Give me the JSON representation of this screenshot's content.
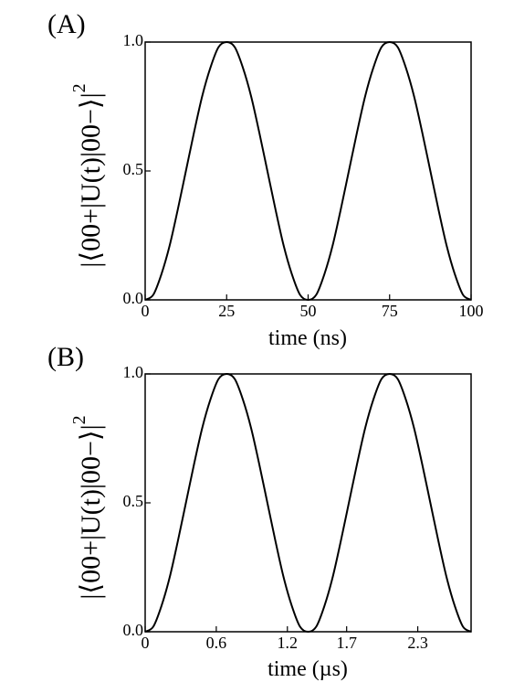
{
  "chart_data": [
    {
      "type": "line",
      "panel_label": "(A)",
      "title": "",
      "xlabel": "time (ns)",
      "ylabel": "|⟨00+|U(t)|00−⟩|",
      "ylabel_superscript": "2",
      "xlim": [
        0,
        100
      ],
      "ylim": [
        0,
        1
      ],
      "xticks": [
        0,
        25,
        50,
        75,
        100
      ],
      "xtick_labels": [
        "0",
        "25",
        "50",
        "75",
        "100"
      ],
      "yticks": [
        0,
        0.5,
        1
      ],
      "ytick_labels": [
        "0.0",
        "0.5",
        "1.0"
      ],
      "grid": false,
      "legend": "none",
      "line_color": "#000000",
      "series": [
        {
          "x": [
            0,
            2.5,
            5,
            7.5,
            10,
            12.5,
            15,
            17.5,
            20,
            22.5,
            25,
            27.5,
            30,
            32.5,
            35,
            37.5,
            40,
            42.5,
            45,
            47.5,
            50,
            52.5,
            55,
            57.5,
            60,
            62.5,
            65,
            67.5,
            70,
            72.5,
            75,
            77.5,
            80,
            82.5,
            85,
            87.5,
            90,
            92.5,
            95,
            97.5,
            100
          ],
          "values": [
            0,
            0.02,
            0.1,
            0.21,
            0.35,
            0.5,
            0.65,
            0.79,
            0.9,
            0.98,
            1,
            0.98,
            0.9,
            0.79,
            0.65,
            0.5,
            0.35,
            0.21,
            0.1,
            0.02,
            0,
            0.02,
            0.1,
            0.21,
            0.35,
            0.5,
            0.65,
            0.79,
            0.9,
            0.98,
            1,
            0.98,
            0.9,
            0.79,
            0.65,
            0.5,
            0.35,
            0.21,
            0.1,
            0.02,
            0
          ]
        }
      ]
    },
    {
      "type": "line",
      "panel_label": "(B)",
      "title": "",
      "xlabel": "time (µs)",
      "ylabel": "|⟨00+|U(t)|00−⟩|",
      "ylabel_superscript": "2",
      "xlim": [
        0,
        2.75
      ],
      "ylim": [
        0,
        1
      ],
      "xticks": [
        0,
        0.6,
        1.2,
        1.7,
        2.3
      ],
      "xtick_labels": [
        "0",
        "0.6",
        "1.2",
        "1.7",
        "2.3"
      ],
      "yticks": [
        0,
        0.5,
        1
      ],
      "ytick_labels": [
        "0.0",
        "0.5",
        "1.0"
      ],
      "grid": false,
      "legend": "none",
      "line_color": "#000000",
      "series": [
        {
          "x": [
            0,
            0.0688,
            0.1375,
            0.2063,
            0.275,
            0.3438,
            0.4125,
            0.4813,
            0.55,
            0.6188,
            0.6875,
            0.7563,
            0.825,
            0.8938,
            0.9625,
            1.0313,
            1.1,
            1.1688,
            1.2375,
            1.3063,
            1.375,
            1.4438,
            1.5125,
            1.5813,
            1.65,
            1.7188,
            1.7875,
            1.8563,
            1.925,
            1.9938,
            2.0625,
            2.1313,
            2.2,
            2.2688,
            2.3375,
            2.4063,
            2.475,
            2.5438,
            2.6125,
            2.6813,
            2.75
          ],
          "values": [
            0,
            0.02,
            0.1,
            0.21,
            0.35,
            0.5,
            0.65,
            0.79,
            0.9,
            0.98,
            1,
            0.98,
            0.9,
            0.79,
            0.65,
            0.5,
            0.35,
            0.21,
            0.1,
            0.02,
            0,
            0.02,
            0.1,
            0.21,
            0.35,
            0.5,
            0.65,
            0.79,
            0.9,
            0.98,
            1,
            0.98,
            0.9,
            0.79,
            0.65,
            0.5,
            0.35,
            0.21,
            0.1,
            0.02,
            0
          ]
        }
      ]
    }
  ]
}
